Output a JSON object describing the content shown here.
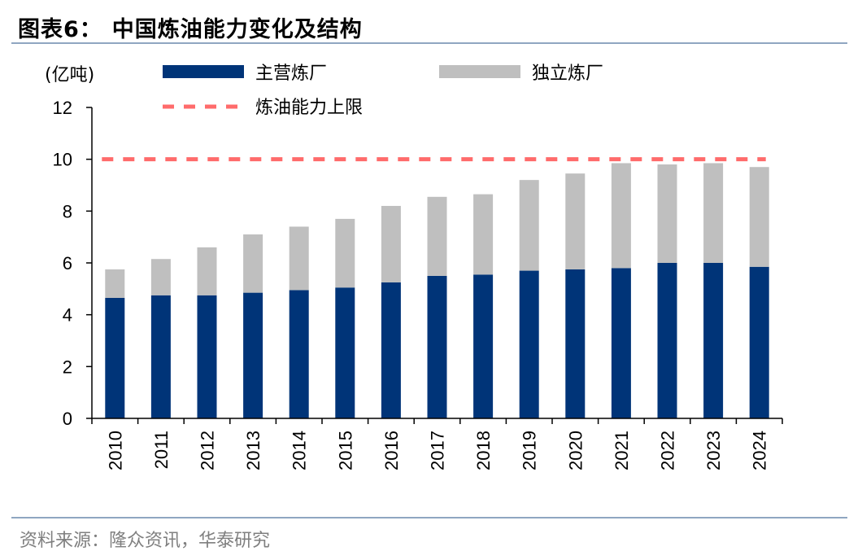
{
  "figure": {
    "title_label": "图表6：",
    "title_text": "中国炼油能力变化及结构",
    "source": "资料来源：隆众资讯，华泰研究"
  },
  "chart_data": {
    "type": "bar",
    "stacked": true,
    "unit": "(亿吨)",
    "categories": [
      "2010",
      "2011",
      "2012",
      "2013",
      "2014",
      "2015",
      "2016",
      "2017",
      "2018",
      "2019",
      "2020",
      "2021",
      "2022",
      "2023",
      "2024"
    ],
    "series": [
      {
        "name": "主营炼厂",
        "color": "#003478",
        "values": [
          4.65,
          4.75,
          4.75,
          4.85,
          4.95,
          5.05,
          5.25,
          5.5,
          5.55,
          5.7,
          5.75,
          5.8,
          6.0,
          6.0,
          5.85
        ]
      },
      {
        "name": "独立炼厂",
        "color": "#bfbfbf",
        "values": [
          1.1,
          1.4,
          1.85,
          2.25,
          2.45,
          2.65,
          2.95,
          3.05,
          3.1,
          3.5,
          3.7,
          4.05,
          3.8,
          3.85,
          3.85
        ]
      }
    ],
    "reference_line": {
      "name": "炼油能力上限",
      "value": 10,
      "color": "#ff6b6b",
      "style": "dashed"
    },
    "ylim": [
      0,
      12
    ],
    "yticks": [
      0,
      2,
      4,
      6,
      8,
      10,
      12
    ],
    "legend_position": "top",
    "grid": false
  }
}
